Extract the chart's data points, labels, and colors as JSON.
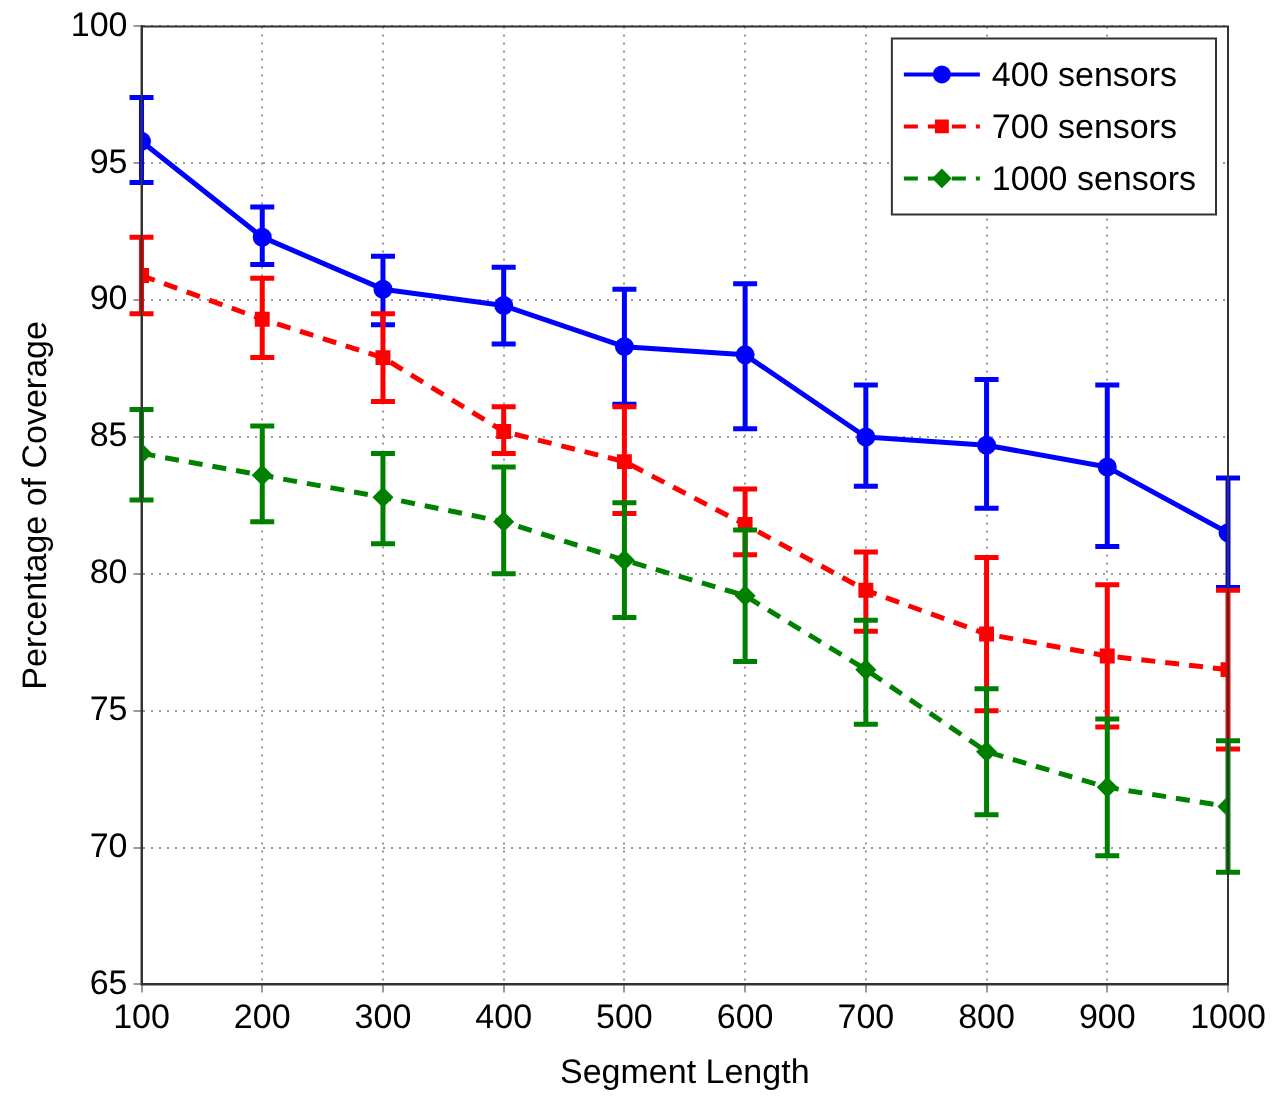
{
  "chart_data": {
    "type": "line",
    "xlabel": "Segment Length",
    "ylabel": "Percentage of Coverage",
    "x": [
      100,
      200,
      300,
      400,
      500,
      600,
      700,
      800,
      900,
      1000
    ],
    "xlim": [
      100,
      1000
    ],
    "xticks": [
      100,
      200,
      300,
      400,
      500,
      600,
      700,
      800,
      900,
      1000
    ],
    "ylim": [
      65,
      100
    ],
    "yticks": [
      65,
      70,
      75,
      80,
      85,
      90,
      95,
      100
    ],
    "grid": true,
    "legend": "top right",
    "series": [
      {
        "name": "400 sensors",
        "color": "#0000ff",
        "marker": "circle",
        "line_style": "solid",
        "values": [
          95.8,
          92.3,
          90.4,
          89.8,
          88.3,
          88.0,
          85.0,
          84.7,
          83.9,
          81.5
        ],
        "errors": [
          [
            94.3,
            97.4
          ],
          [
            91.3,
            93.4
          ],
          [
            89.1,
            91.6
          ],
          [
            88.4,
            91.2
          ],
          [
            86.2,
            90.4
          ],
          [
            85.3,
            90.6
          ],
          [
            83.2,
            86.9
          ],
          [
            82.4,
            87.1
          ],
          [
            81.0,
            86.9
          ],
          [
            79.5,
            83.5
          ]
        ]
      },
      {
        "name": "700 sensors",
        "color": "#ff0000",
        "marker": "square",
        "line_style": "dashed",
        "values": [
          90.9,
          89.3,
          87.9,
          85.2,
          84.1,
          81.8,
          79.4,
          77.8,
          77.0,
          76.5
        ],
        "errors": [
          [
            89.5,
            92.3
          ],
          [
            87.9,
            90.8
          ],
          [
            86.3,
            89.5
          ],
          [
            84.4,
            86.1
          ],
          [
            82.2,
            86.1
          ],
          [
            80.7,
            83.1
          ],
          [
            77.9,
            80.8
          ],
          [
            75.0,
            80.6
          ],
          [
            74.4,
            79.6
          ],
          [
            73.6,
            79.4
          ]
        ]
      },
      {
        "name": "1000 sensors",
        "color": "#008000",
        "marker": "diamond",
        "line_style": "dashed",
        "values": [
          84.4,
          83.6,
          82.8,
          81.9,
          80.5,
          79.2,
          76.5,
          73.5,
          72.2,
          71.5
        ],
        "errors": [
          [
            82.7,
            86.0
          ],
          [
            81.9,
            85.4
          ],
          [
            81.1,
            84.4
          ],
          [
            80.0,
            83.9
          ],
          [
            78.4,
            82.6
          ],
          [
            76.8,
            81.6
          ],
          [
            74.5,
            78.3
          ],
          [
            71.2,
            75.8
          ],
          [
            69.7,
            74.7
          ],
          [
            69.1,
            73.9
          ]
        ]
      }
    ]
  }
}
